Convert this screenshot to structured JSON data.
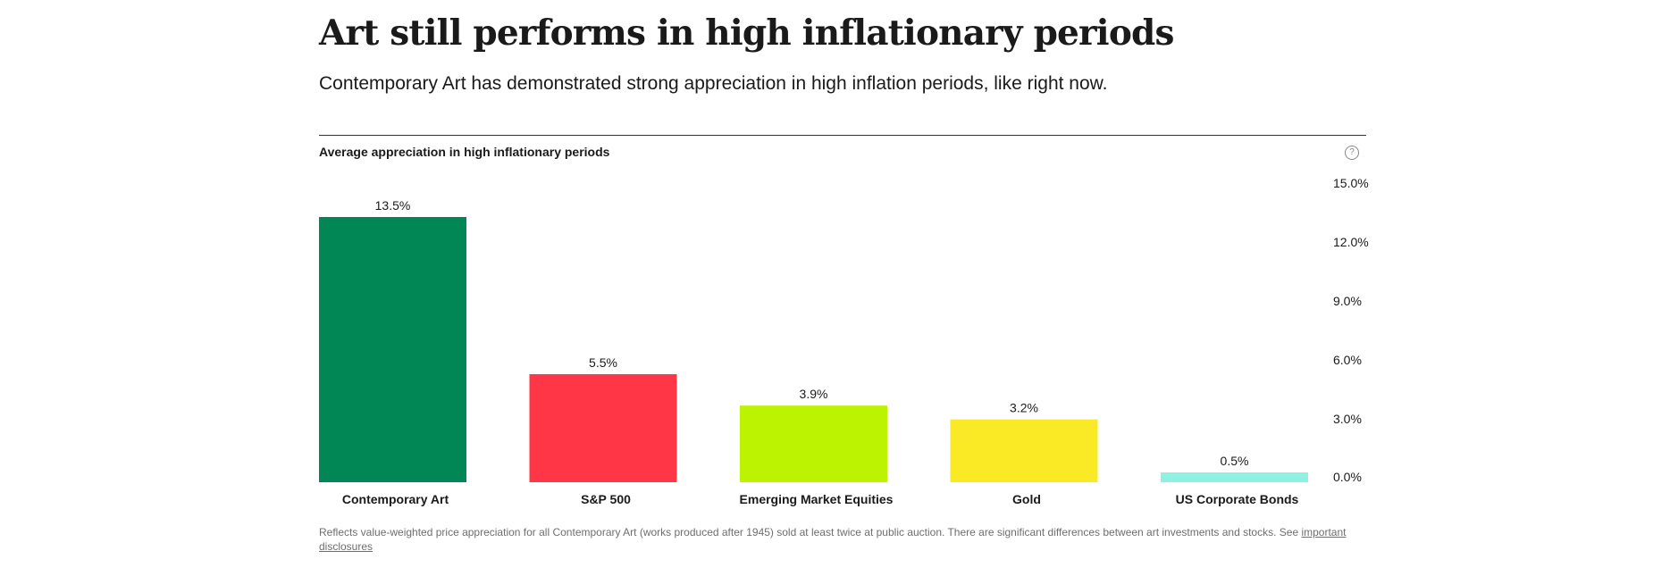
{
  "header": {
    "title": "Art still performs in high inflationary periods",
    "subtitle": "Contemporary Art has demonstrated strong appreciation in high inflation periods, like right now."
  },
  "help_icon": "question-circle-icon",
  "footnote": {
    "text": "Reflects value-weighted price appreciation for all Contemporary Art (works produced after 1945) sold at least twice at public auction. There are significant differences between art investments and stocks. See ",
    "link": "important disclosures"
  },
  "chart_data": {
    "type": "bar",
    "title": "Average appreciation in high inflationary periods",
    "categories": [
      "Contemporary Art",
      "S&P 500",
      "Emerging Market Equities",
      "Gold",
      "US Corporate Bonds"
    ],
    "values": [
      13.5,
      5.5,
      3.9,
      3.2,
      0.5
    ],
    "value_labels": [
      "13.5%",
      "5.5%",
      "3.9%",
      "3.2%",
      "0.5%"
    ],
    "colors": [
      "#008755",
      "#ff3645",
      "#bcf301",
      "#fae925",
      "#8ff1e2"
    ],
    "ylim": [
      0,
      15
    ],
    "yticks": [
      0,
      3,
      6,
      9,
      12,
      15
    ],
    "ytick_labels": [
      "0.0%",
      "3.0%",
      "6.0%",
      "9.0%",
      "12.0%",
      "15.0%"
    ],
    "y_axis_position": "right",
    "grid": false,
    "legend": "none"
  }
}
